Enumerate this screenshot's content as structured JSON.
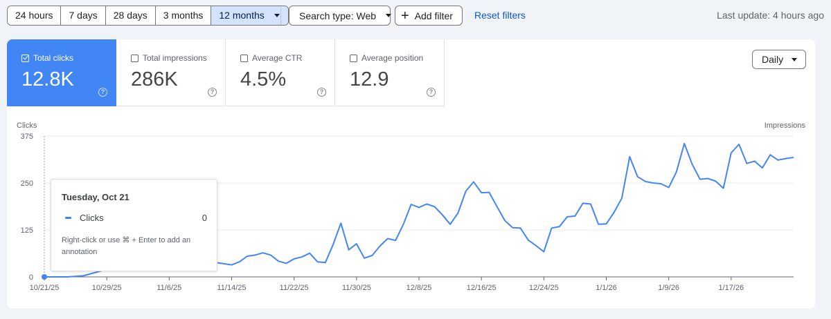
{
  "toolbar": {
    "ranges": [
      "24 hours",
      "7 days",
      "28 days",
      "3 months",
      "12 months"
    ],
    "active_range": "12 months",
    "search_type": "Search type: Web",
    "add_filter": "Add filter",
    "reset_filters": "Reset filters",
    "last_update": "Last update: 4 hours ago"
  },
  "metrics": [
    {
      "label": "Total clicks",
      "value": "12.8K",
      "checked": true
    },
    {
      "label": "Total impressions",
      "value": "286K",
      "checked": false
    },
    {
      "label": "Average CTR",
      "value": "4.5%",
      "checked": false
    },
    {
      "label": "Average position",
      "value": "12.9",
      "checked": false
    }
  ],
  "granularity": "Daily",
  "colors": {
    "accent": "#4285f4",
    "link": "#0b57d0",
    "active_range_bg": "#d3e3fd"
  },
  "tooltip": {
    "date": "Tuesday, Oct 21",
    "series": "Clicks",
    "value": "0",
    "hint": "Right-click or use ⌘ + Enter to add an annotation"
  },
  "chart_data": {
    "type": "line",
    "ylabel": "Clicks",
    "y2label": "Impressions",
    "ylim": [
      0,
      375
    ],
    "yticks": [
      0,
      125,
      250,
      375
    ],
    "xticks": [
      "10/21/25",
      "10/29/25",
      "11/6/25",
      "11/14/25",
      "11/22/25",
      "11/30/25",
      "12/8/25",
      "12/16/25",
      "12/24/25",
      "1/1/26",
      "1/9/26",
      "1/17/26"
    ],
    "grid": true,
    "series": [
      {
        "name": "Clicks",
        "color": "#4285f4",
        "x": [
          "10/21/25",
          "10/24/25",
          "10/26/25",
          "10/29/25",
          "11/1/25",
          "11/4/25",
          "11/6/25",
          "11/9/25",
          "11/12/25",
          "11/14/25",
          "11/15/25",
          "11/16/25",
          "11/17/25",
          "11/18/25",
          "11/19/25",
          "11/20/25",
          "11/21/25",
          "11/22/25",
          "11/23/25",
          "11/24/25",
          "11/25/25",
          "11/26/25",
          "11/27/25",
          "11/28/25",
          "11/29/25",
          "11/30/25",
          "12/1/25",
          "12/2/25",
          "12/3/25",
          "12/4/25",
          "12/5/25",
          "12/6/25",
          "12/7/25",
          "12/8/25",
          "12/9/25",
          "12/10/25",
          "12/11/25",
          "12/12/25",
          "12/13/25",
          "12/14/25",
          "12/15/25",
          "12/16/25",
          "12/17/25",
          "12/18/25",
          "12/19/25",
          "12/20/25",
          "12/21/25",
          "12/22/25",
          "12/23/25",
          "12/24/25",
          "12/25/25",
          "12/26/25",
          "12/27/25",
          "12/28/25",
          "12/29/25",
          "12/30/25",
          "12/31/25",
          "1/1/26",
          "1/2/26",
          "1/3/26",
          "1/4/26",
          "1/5/26",
          "1/6/26",
          "1/7/26",
          "1/8/26",
          "1/9/26",
          "1/10/26",
          "1/11/26",
          "1/12/26",
          "1/13/26",
          "1/14/26",
          "1/15/26",
          "1/16/26",
          "1/17/26",
          "1/18/26",
          "1/19/26",
          "1/20/26",
          "1/21/26",
          "1/22/26",
          "1/23/26",
          "1/24/26",
          "1/25/26"
        ],
        "values": [
          0,
          0,
          3,
          20,
          28,
          35,
          30,
          36,
          38,
          32,
          40,
          55,
          58,
          64,
          58,
          42,
          36,
          48,
          53,
          63,
          40,
          38,
          86,
          143,
          72,
          88,
          50,
          57,
          82,
          102,
          97,
          140,
          193,
          185,
          194,
          187,
          165,
          140,
          170,
          228,
          253,
          224,
          225,
          187,
          150,
          131,
          130,
          98,
          83,
          67,
          130,
          134,
          160,
          162,
          196,
          194,
          140,
          141,
          172,
          210,
          320,
          267,
          254,
          250,
          248,
          238,
          280,
          355,
          300,
          260,
          262,
          255,
          236,
          330,
          353,
          302,
          308,
          290,
          325,
          311,
          315,
          318
        ]
      }
    ]
  }
}
